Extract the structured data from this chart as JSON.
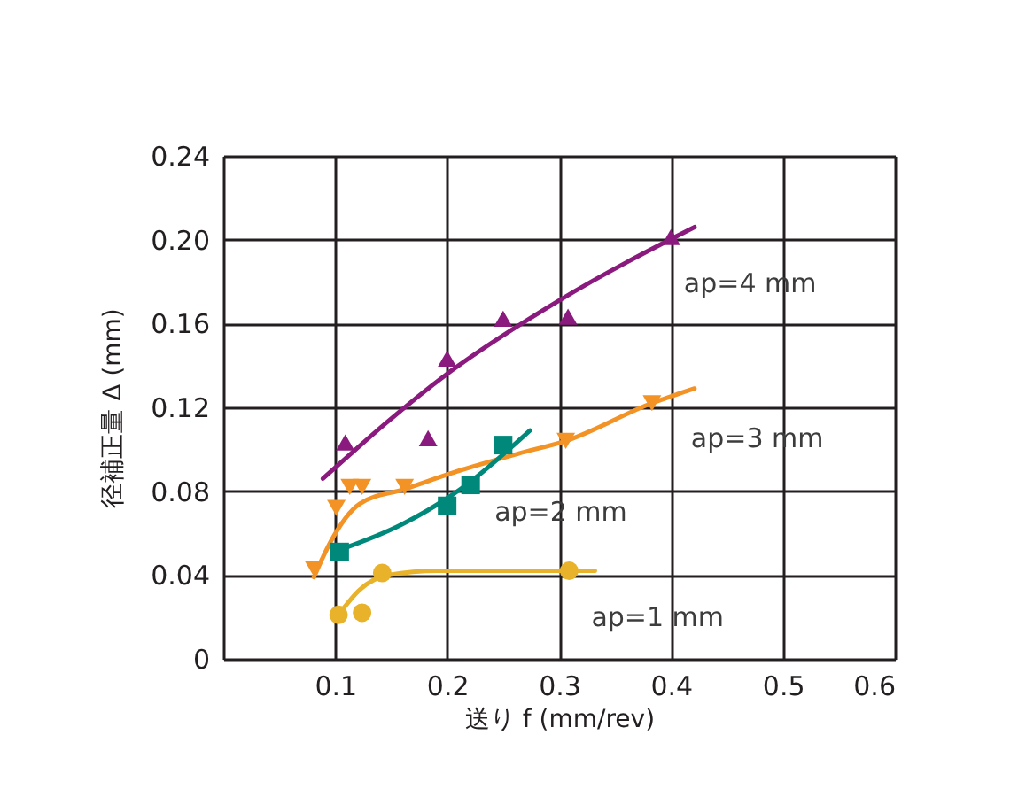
{
  "chart_data": {
    "type": "scatter",
    "xlabel": "送り f (mm/rev)",
    "ylabel": "径補正量 Δ (mm)",
    "xlim": [
      0,
      0.6
    ],
    "xticks": [
      {
        "value": 0,
        "label": null
      },
      0.1,
      0.2,
      0.3,
      0.4,
      0.5,
      0.6
    ],
    "ylim": [
      0,
      0.24
    ],
    "yticks": [
      0,
      0.04,
      0.08,
      0.12,
      0.16,
      {
        "value": 0.2,
        "label": "0.20"
      },
      0.24
    ],
    "grid": true,
    "legend": false,
    "series": [
      {
        "marker": "triangle",
        "color": "#8b1a7e",
        "x": [
          0.109,
          0.183,
          0.2,
          0.25,
          0.308,
          0.4
        ],
        "values": [
          0.102,
          0.104,
          0.142,
          0.161,
          0.162,
          0.2
        ]
      },
      {
        "type": "line",
        "name": "ap=4 mm",
        "color": "#8b1a7e",
        "x": [
          0.089,
          0.2,
          0.3,
          0.421
        ],
        "values": [
          0.086,
          0.136,
          0.171,
          0.206
        ]
      },
      {
        "marker": "triangle-down",
        "color": "#f39325",
        "x": [
          0.081,
          0.101,
          0.113,
          0.124,
          0.162,
          0.306,
          0.383
        ],
        "values": [
          0.043,
          0.072,
          0.082,
          0.082,
          0.082,
          0.104,
          0.122
        ]
      },
      {
        "type": "line",
        "name": "ap=3 mm",
        "color": "#f39325",
        "x": [
          0.081,
          0.096,
          0.122,
          0.162,
          0.212,
          0.264,
          0.306,
          0.383,
          0.421
        ],
        "values": [
          0.039,
          0.056,
          0.074,
          0.081,
          0.09,
          0.098,
          0.104,
          0.122,
          0.129
        ]
      },
      {
        "marker": "square",
        "color": "#00897b",
        "x": [
          0.104,
          0.2,
          0.221,
          0.25
        ],
        "values": [
          0.051,
          0.073,
          0.083,
          0.102
        ]
      },
      {
        "type": "line",
        "name": "ap=2 mm",
        "color": "#00897b",
        "x": [
          0.104,
          0.159,
          0.212,
          0.274
        ],
        "values": [
          0.052,
          0.064,
          0.081,
          0.109
        ]
      },
      {
        "marker": "circle",
        "color": "#e8b22a",
        "x": [
          0.103,
          0.124,
          0.142,
          0.309
        ],
        "values": [
          0.021,
          0.022,
          0.041,
          0.042
        ]
      },
      {
        "type": "line",
        "name": "ap=1 mm",
        "color": "#e8b22a",
        "x": [
          0.103,
          0.122,
          0.148,
          0.191,
          0.332
        ],
        "values": [
          0.021,
          0.033,
          0.04,
          0.042,
          0.042
        ]
      }
    ]
  }
}
